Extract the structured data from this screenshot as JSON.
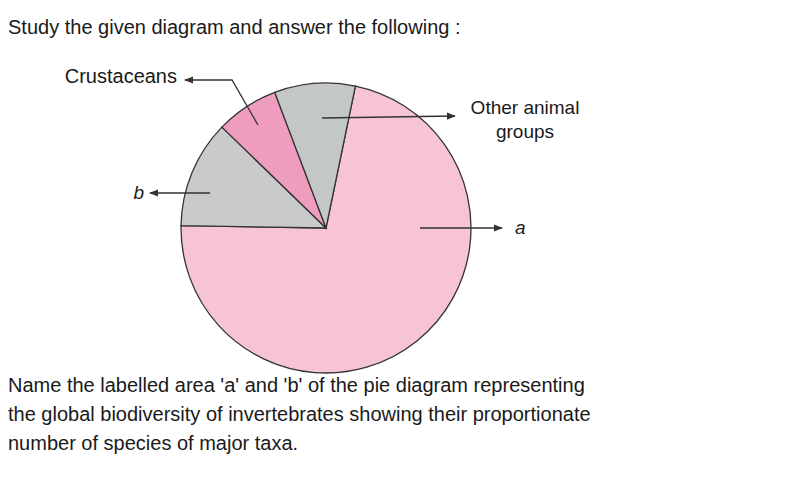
{
  "prompt": "Study the given diagram and answer the following :",
  "chart_data": {
    "type": "pie",
    "categories": [
      "a",
      "b",
      "Crustaceans",
      "Other animal groups"
    ],
    "values": [
      72,
      12,
      7,
      9
    ],
    "colors": [
      "#f6c3d7",
      "#c8cbca",
      "#ee9dbe",
      "#c3c7c5"
    ],
    "data_labels": false
  },
  "question": [
    "Name the labelled area 'a' and 'b' of the pie diagram representing",
    "the global biodiversity of invertebrates showing their proportionate",
    "number of species of major taxa."
  ]
}
